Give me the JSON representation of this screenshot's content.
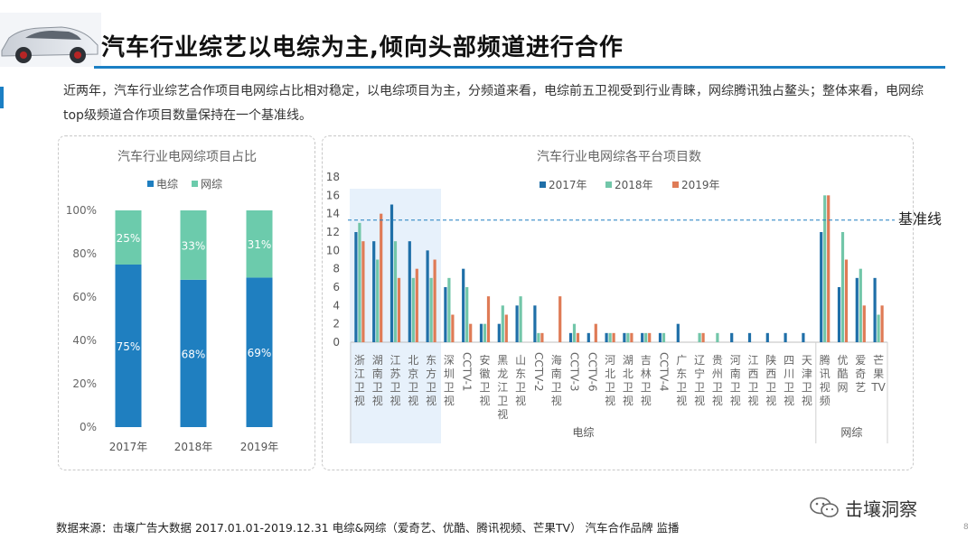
{
  "header": {
    "title": "汽车行业综艺以电综为主,倾向头部频道进行合作",
    "intro": "近两年，汽车行业综艺合作项目电网综占比相对稳定，以电综项目为主，分频道来看，电综前五卫视受到行业青睐，网综腾讯独占鳌头；整体来看，电网综top级频道合作项目数量保持在一个基准线。"
  },
  "colors": {
    "accent": "#1b7fc4",
    "tv_blue": "#1f7fc0",
    "net_green": "#6ccbac",
    "y2017": "#1f6fa8",
    "y2018": "#72c6a9",
    "y2019": "#df7b56",
    "highlight": "#e7f1fb",
    "baseline": "#1f7fc0"
  },
  "chart_data": [
    {
      "type": "bar",
      "stacked": true,
      "title": "汽车行业电网综项目占比",
      "categories": [
        "2017年",
        "2018年",
        "2019年"
      ],
      "series": [
        {
          "name": "电综",
          "values": [
            75,
            68,
            69
          ],
          "labels": [
            "75%",
            "68%",
            "69%"
          ]
        },
        {
          "name": "网综",
          "values": [
            25,
            33,
            31
          ],
          "labels": [
            "25%",
            "33%",
            "31%"
          ]
        }
      ],
      "ylim": [
        0,
        100
      ],
      "yticks": [
        "0%",
        "20%",
        "40%",
        "60%",
        "80%",
        "100%"
      ],
      "legend": "top",
      "grid": false
    },
    {
      "type": "bar",
      "title": "汽车行业电网综各平台项目数",
      "categories": [
        "浙江卫视",
        "湖南卫视",
        "江苏卫视",
        "北京卫视",
        "东方卫视",
        "深圳卫视",
        "CCTV-1",
        "安徽卫视",
        "黑龙江卫视",
        "山东卫视",
        "CCTV-2",
        "海南卫视",
        "CCTV-3",
        "CCTV-6",
        "河北卫视",
        "湖北卫视",
        "吉林卫视",
        "CCTV-4",
        "广东卫视",
        "辽宁卫视",
        "贵州卫视",
        "河南卫视",
        "江西卫视",
        "陕西卫视",
        "四川卫视",
        "天津卫视",
        "腾讯视频",
        "优酷网",
        "爱奇艺",
        "芒果TV"
      ],
      "series": [
        {
          "name": "2017年",
          "values": [
            12,
            11,
            15,
            11,
            10,
            6,
            8,
            2,
            2,
            4,
            4,
            0,
            1,
            1,
            1,
            1,
            1,
            1,
            2,
            0,
            0,
            1,
            1,
            1,
            1,
            1,
            12,
            6,
            7,
            7
          ]
        },
        {
          "name": "2018年",
          "values": [
            13,
            9,
            11,
            7,
            7,
            7,
            6,
            2,
            4,
            5,
            1,
            0,
            2,
            0,
            1,
            1,
            1,
            1,
            0,
            1,
            1,
            0,
            0,
            0,
            0,
            0,
            16,
            12,
            8,
            3
          ]
        },
        {
          "name": "2019年",
          "values": [
            11,
            14,
            7,
            8,
            9,
            3,
            2,
            5,
            3,
            0,
            1,
            5,
            1,
            2,
            1,
            1,
            1,
            0,
            0,
            1,
            0,
            0,
            0,
            0,
            0,
            0,
            16,
            9,
            4,
            4
          ]
        }
      ],
      "groups": [
        {
          "name": "电综",
          "from": 0,
          "to": 25
        },
        {
          "name": "网综",
          "from": 26,
          "to": 29
        }
      ],
      "highlight_range": [
        0,
        4
      ],
      "ylim": [
        0,
        18
      ],
      "yticks": [
        0,
        2,
        4,
        6,
        8,
        10,
        12,
        14,
        16,
        18
      ],
      "baseline": {
        "value": 13.3,
        "label": "基准线"
      },
      "legend": "top",
      "grid": false
    }
  ],
  "footer": {
    "source": "数据来源：击壤广告大数据 2017.01.01-2019.12.31  电综&网综（爱奇艺、优酷、腾讯视频、芒果TV） 汽车合作品牌 监播",
    "brand": "击壤洞察",
    "page": "8"
  }
}
